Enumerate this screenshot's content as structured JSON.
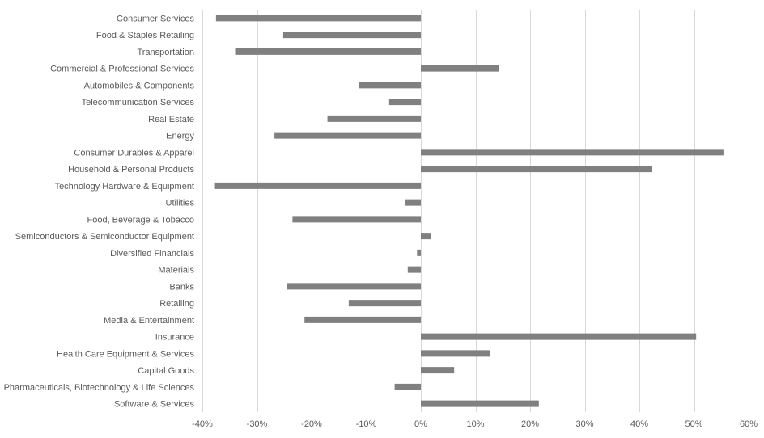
{
  "chart_data": {
    "type": "bar",
    "orientation": "horizontal",
    "title": "",
    "xlabel": "",
    "ylabel": "",
    "categories": [
      "Consumer Services",
      "Food & Staples Retailing",
      "Transportation",
      "Commercial & Professional Services",
      "Automobiles & Components",
      "Telecommunication Services",
      "Real Estate",
      "Energy",
      "Consumer Durables & Apparel",
      "Household & Personal Products",
      "Technology Hardware & Equipment",
      "Utilities",
      "Food, Beverage & Tobacco",
      "Semiconductors & Semiconductor Equipment",
      "Diversified Financials",
      "Materials",
      "Banks",
      "Retailing",
      "Media & Entertainment",
      "Insurance",
      "Health Care Equipment & Services",
      "Capital Goods",
      "Pharmaceuticals, Biotechnology & Life Sciences",
      "Software & Services"
    ],
    "series": [
      {
        "values": [
          -37.5,
          -25.2,
          -34.0,
          14.3,
          -11.4,
          -5.8,
          -17.1,
          -26.8,
          55.4,
          42.3,
          -37.7,
          -2.9,
          -23.5,
          1.9,
          -0.7,
          -2.4,
          -24.5,
          -13.2,
          -21.3,
          50.4,
          12.6,
          6.1,
          -4.8,
          21.6
        ]
      }
    ],
    "xlim": [
      -40,
      60
    ],
    "xticks": [
      -40,
      -30,
      -20,
      -10,
      0,
      10,
      20,
      30,
      40,
      50,
      60
    ],
    "xtick_labels": [
      "-40%",
      "-30%",
      "-20%",
      "-10%",
      "0%",
      "10%",
      "20%",
      "30%",
      "40%",
      "50%",
      "60%"
    ],
    "grid": true,
    "legend": false,
    "bar_color": "#808080",
    "grid_color": "#d9d9d9",
    "text_color": "#595959"
  }
}
